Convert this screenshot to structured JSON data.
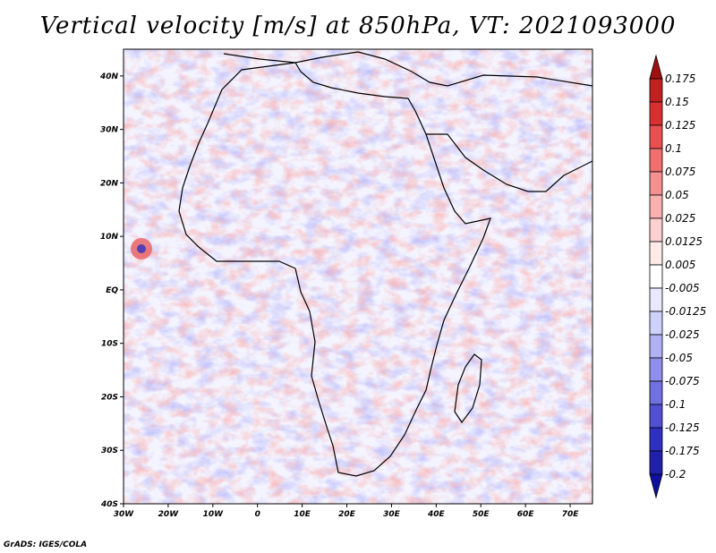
{
  "title": "Vertical velocity [m/s] at 850hPa, VT: 2021093000",
  "credit": "GrADS: IGES/COLA",
  "map": {
    "lon_range": [
      -30,
      75
    ],
    "lat_range": [
      -40,
      45
    ],
    "lon_ticks": [
      "30W",
      "20W",
      "10W",
      "0",
      "10E",
      "20E",
      "30E",
      "40E",
      "50E",
      "60E",
      "70E"
    ],
    "lat_ticks": [
      "40N",
      "30N",
      "20N",
      "10N",
      "EQ",
      "10S",
      "20S",
      "30S",
      "40S"
    ]
  },
  "colorbar": {
    "levels": [
      "0.175",
      "0.15",
      "0.125",
      "0.1",
      "0.075",
      "0.05",
      "0.025",
      "0.0125",
      "0.005",
      "-0.005",
      "-0.0125",
      "-0.025",
      "-0.05",
      "-0.075",
      "-0.1",
      "-0.125",
      "-0.175",
      "-0.2"
    ],
    "colors": [
      "#a01010",
      "#c02020",
      "#d83030",
      "#e85050",
      "#f07070",
      "#f49090",
      "#f8b0b0",
      "#fcd0d0",
      "#ffeaea",
      "#ffffff",
      "#e8e8ff",
      "#d0d0fc",
      "#b0b0f4",
      "#9090ec",
      "#7070e0",
      "#5050d0",
      "#3030c0",
      "#2020a8",
      "#1010a0"
    ]
  },
  "chart_data": {
    "type": "heatmap",
    "title": "Vertical velocity [m/s] at 850hPa, VT: 2021093000",
    "variable": "Vertical velocity",
    "units": "m/s",
    "level": "850hPa",
    "valid_time": "2021093000",
    "xlabel": "",
    "ylabel": "",
    "xlim": [
      -30,
      75
    ],
    "ylim": [
      -40,
      45
    ],
    "contour_levels": [
      0.175,
      0.15,
      0.125,
      0.1,
      0.075,
      0.05,
      0.025,
      0.0125,
      0.005,
      -0.005,
      -0.0125,
      -0.025,
      -0.05,
      -0.075,
      -0.1,
      -0.125,
      -0.175,
      -0.2
    ]
  }
}
